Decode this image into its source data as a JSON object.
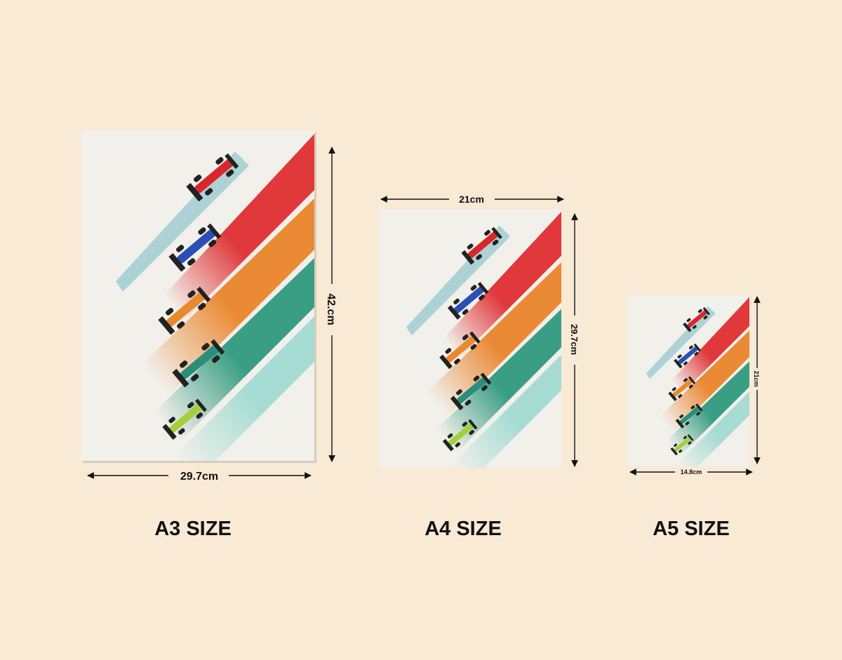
{
  "posters": [
    {
      "label": "A3 SIZE",
      "width_label": "29.7cm",
      "height_label": "42.cm"
    },
    {
      "label": "A4 SIZE",
      "width_label": "21cm",
      "height_label": "29.7cm"
    },
    {
      "label": "A5 SIZE",
      "width_label": "14.8cm",
      "height_label": "21cm"
    }
  ]
}
